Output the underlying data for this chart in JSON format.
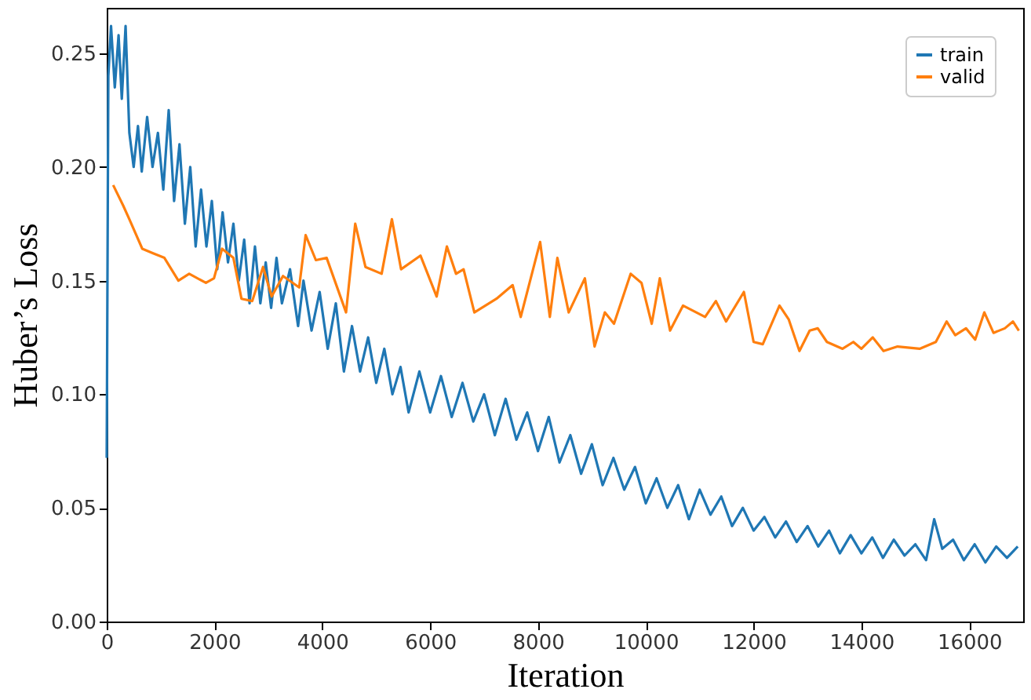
{
  "chart_data": {
    "type": "line",
    "xlabel": "Iteration",
    "ylabel": "Huber’s Loss",
    "xlim": [
      0,
      17000
    ],
    "ylim": [
      0,
      0.27
    ],
    "xticks": [
      0,
      2000,
      4000,
      6000,
      8000,
      10000,
      12000,
      14000,
      16000
    ],
    "yticks": [
      {
        "value": 0,
        "label": "0.00"
      },
      {
        "value": 0.05,
        "label": "0.05"
      },
      {
        "value": 0.1,
        "label": "0.10"
      },
      {
        "value": 0.15,
        "label": "0.15"
      },
      {
        "value": 0.2,
        "label": "0.20"
      },
      {
        "value": 0.25,
        "label": "0.25"
      }
    ],
    "grid": false,
    "legend": "top right",
    "marker": "none",
    "line_style": "solid",
    "series": [
      {
        "name": "train",
        "color": "#1f77b4",
        "x": [
          0,
          30,
          80,
          150,
          220,
          280,
          350,
          420,
          500,
          580,
          650,
          750,
          850,
          950,
          1050,
          1150,
          1250,
          1350,
          1450,
          1550,
          1650,
          1750,
          1850,
          1950,
          2050,
          2150,
          2250,
          2350,
          2450,
          2550,
          2650,
          2750,
          2850,
          2950,
          3050,
          3150,
          3250,
          3400,
          3550,
          3650,
          3800,
          3950,
          4100,
          4250,
          4400,
          4550,
          4700,
          4850,
          5000,
          5150,
          5300,
          5450,
          5600,
          5800,
          6000,
          6200,
          6400,
          6600,
          6800,
          7000,
          7200,
          7400,
          7600,
          7800,
          8000,
          8200,
          8400,
          8600,
          8800,
          9000,
          9200,
          9400,
          9600,
          9800,
          10000,
          10200,
          10400,
          10600,
          10800,
          11000,
          11200,
          11400,
          11600,
          11800,
          12000,
          12200,
          12400,
          12600,
          12800,
          13000,
          13200,
          13400,
          13600,
          13800,
          14000,
          14200,
          14400,
          14600,
          14800,
          15000,
          15200,
          15350,
          15500,
          15700,
          15900,
          16100,
          16300,
          16500,
          16700,
          16900
        ],
        "values": [
          0.072,
          0.24,
          0.262,
          0.235,
          0.258,
          0.23,
          0.262,
          0.215,
          0.2,
          0.218,
          0.198,
          0.222,
          0.2,
          0.215,
          0.19,
          0.225,
          0.185,
          0.21,
          0.175,
          0.2,
          0.165,
          0.19,
          0.165,
          0.185,
          0.155,
          0.18,
          0.158,
          0.175,
          0.15,
          0.168,
          0.14,
          0.165,
          0.14,
          0.158,
          0.138,
          0.16,
          0.14,
          0.155,
          0.13,
          0.15,
          0.128,
          0.145,
          0.12,
          0.14,
          0.11,
          0.13,
          0.11,
          0.125,
          0.105,
          0.12,
          0.1,
          0.112,
          0.092,
          0.11,
          0.092,
          0.108,
          0.09,
          0.105,
          0.088,
          0.1,
          0.082,
          0.098,
          0.08,
          0.092,
          0.075,
          0.09,
          0.07,
          0.082,
          0.065,
          0.078,
          0.06,
          0.072,
          0.058,
          0.068,
          0.052,
          0.063,
          0.05,
          0.06,
          0.045,
          0.058,
          0.047,
          0.055,
          0.042,
          0.05,
          0.04,
          0.046,
          0.037,
          0.044,
          0.035,
          0.042,
          0.033,
          0.04,
          0.03,
          0.038,
          0.03,
          0.037,
          0.028,
          0.036,
          0.029,
          0.034,
          0.027,
          0.045,
          0.032,
          0.036,
          0.027,
          0.034,
          0.026,
          0.033,
          0.028,
          0.033
        ]
      },
      {
        "name": "valid",
        "color": "#ff7f0e",
        "x": [
          120,
          306,
          420,
          660,
          860,
          1070,
          1330,
          1530,
          1840,
          1990,
          2140,
          2350,
          2500,
          2700,
          2900,
          3060,
          3270,
          3570,
          3690,
          3880,
          4080,
          4440,
          4610,
          4800,
          5100,
          5290,
          5460,
          5820,
          6120,
          6310,
          6480,
          6620,
          6820,
          7230,
          7530,
          7680,
          8040,
          8220,
          8360,
          8570,
          8870,
          9050,
          9240,
          9410,
          9720,
          9920,
          10110,
          10260,
          10450,
          10690,
          11100,
          11300,
          11490,
          11820,
          12000,
          12170,
          12480,
          12650,
          12850,
          13040,
          13190,
          13360,
          13650,
          13850,
          14000,
          14210,
          14410,
          14670,
          15080,
          15380,
          15580,
          15740,
          15940,
          16110,
          16280,
          16450,
          16660,
          16810,
          16920
        ],
        "values": [
          0.192,
          0.183,
          0.177,
          0.164,
          0.162,
          0.16,
          0.15,
          0.153,
          0.149,
          0.151,
          0.164,
          0.16,
          0.142,
          0.141,
          0.156,
          0.143,
          0.152,
          0.147,
          0.17,
          0.159,
          0.16,
          0.136,
          0.175,
          0.156,
          0.153,
          0.177,
          0.155,
          0.161,
          0.143,
          0.165,
          0.153,
          0.155,
          0.136,
          0.142,
          0.148,
          0.134,
          0.167,
          0.134,
          0.16,
          0.136,
          0.151,
          0.121,
          0.136,
          0.131,
          0.153,
          0.149,
          0.131,
          0.151,
          0.128,
          0.139,
          0.134,
          0.141,
          0.132,
          0.145,
          0.123,
          0.122,
          0.139,
          0.133,
          0.119,
          0.128,
          0.129,
          0.123,
          0.12,
          0.123,
          0.12,
          0.125,
          0.119,
          0.121,
          0.12,
          0.123,
          0.132,
          0.126,
          0.129,
          0.124,
          0.136,
          0.127,
          0.129,
          0.132,
          0.128
        ]
      }
    ]
  }
}
